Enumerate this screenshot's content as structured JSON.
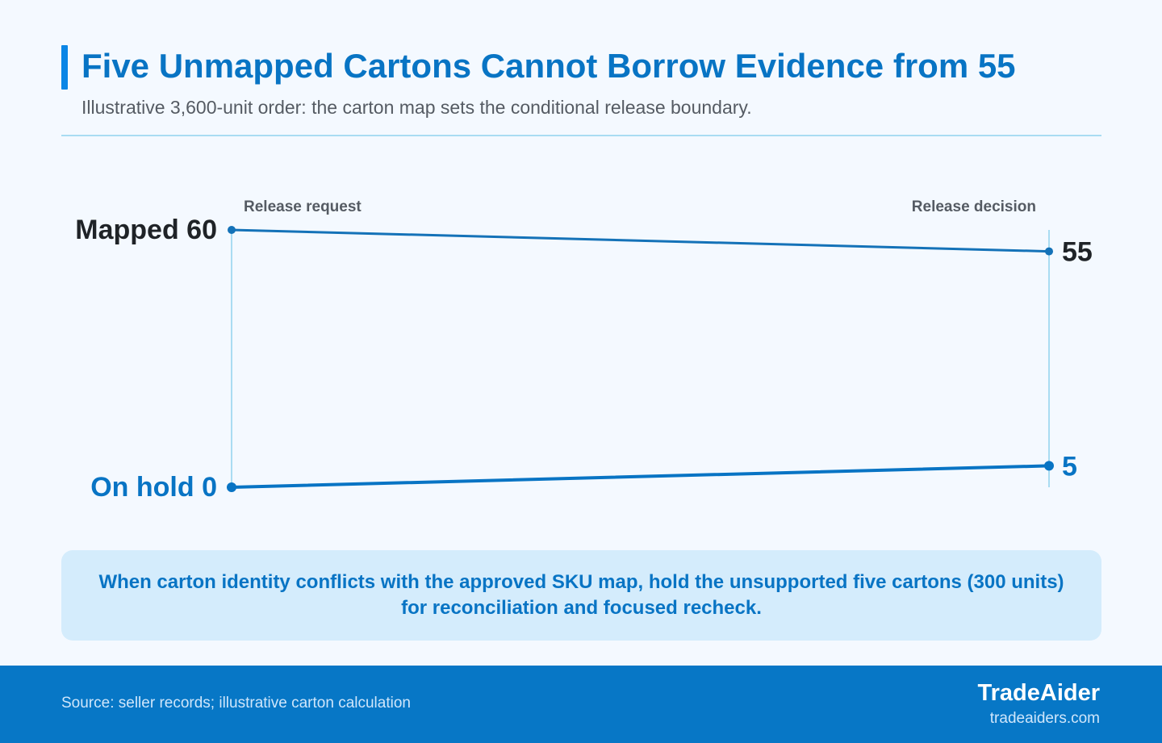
{
  "header": {
    "title": "Five Unmapped Cartons Cannot Borrow Evidence from 55",
    "subtitle": "Illustrative 3,600-unit order: the carton map sets the conditional release boundary."
  },
  "chart_data": {
    "type": "line",
    "x": [
      "Release request",
      "Release decision"
    ],
    "series": [
      {
        "name": "Mapped",
        "values": [
          60,
          55
        ],
        "start_label": "Mapped 60",
        "end_label": "55",
        "color": "#1472b8"
      },
      {
        "name": "On hold",
        "values": [
          0,
          5
        ],
        "start_label": "On hold 0",
        "end_label": "5",
        "color": "#0874c4"
      }
    ],
    "ylim": [
      0,
      60
    ],
    "grid": false,
    "legend": "none"
  },
  "callout": {
    "text": "When carton identity conflicts with the approved SKU map, hold the unsupported five cartons (300 units) for reconciliation and focused recheck."
  },
  "footer": {
    "source": "Source: seller records; illustrative carton calculation",
    "brand": "TradeAider",
    "url": "tradeaiders.com"
  },
  "colors": {
    "accent": "#0874c4",
    "accent_bar": "#0b86e6",
    "axis_line": "#a9dcf2",
    "footer_bg": "#0777c6",
    "callout_bg": "#d4ecfc"
  }
}
